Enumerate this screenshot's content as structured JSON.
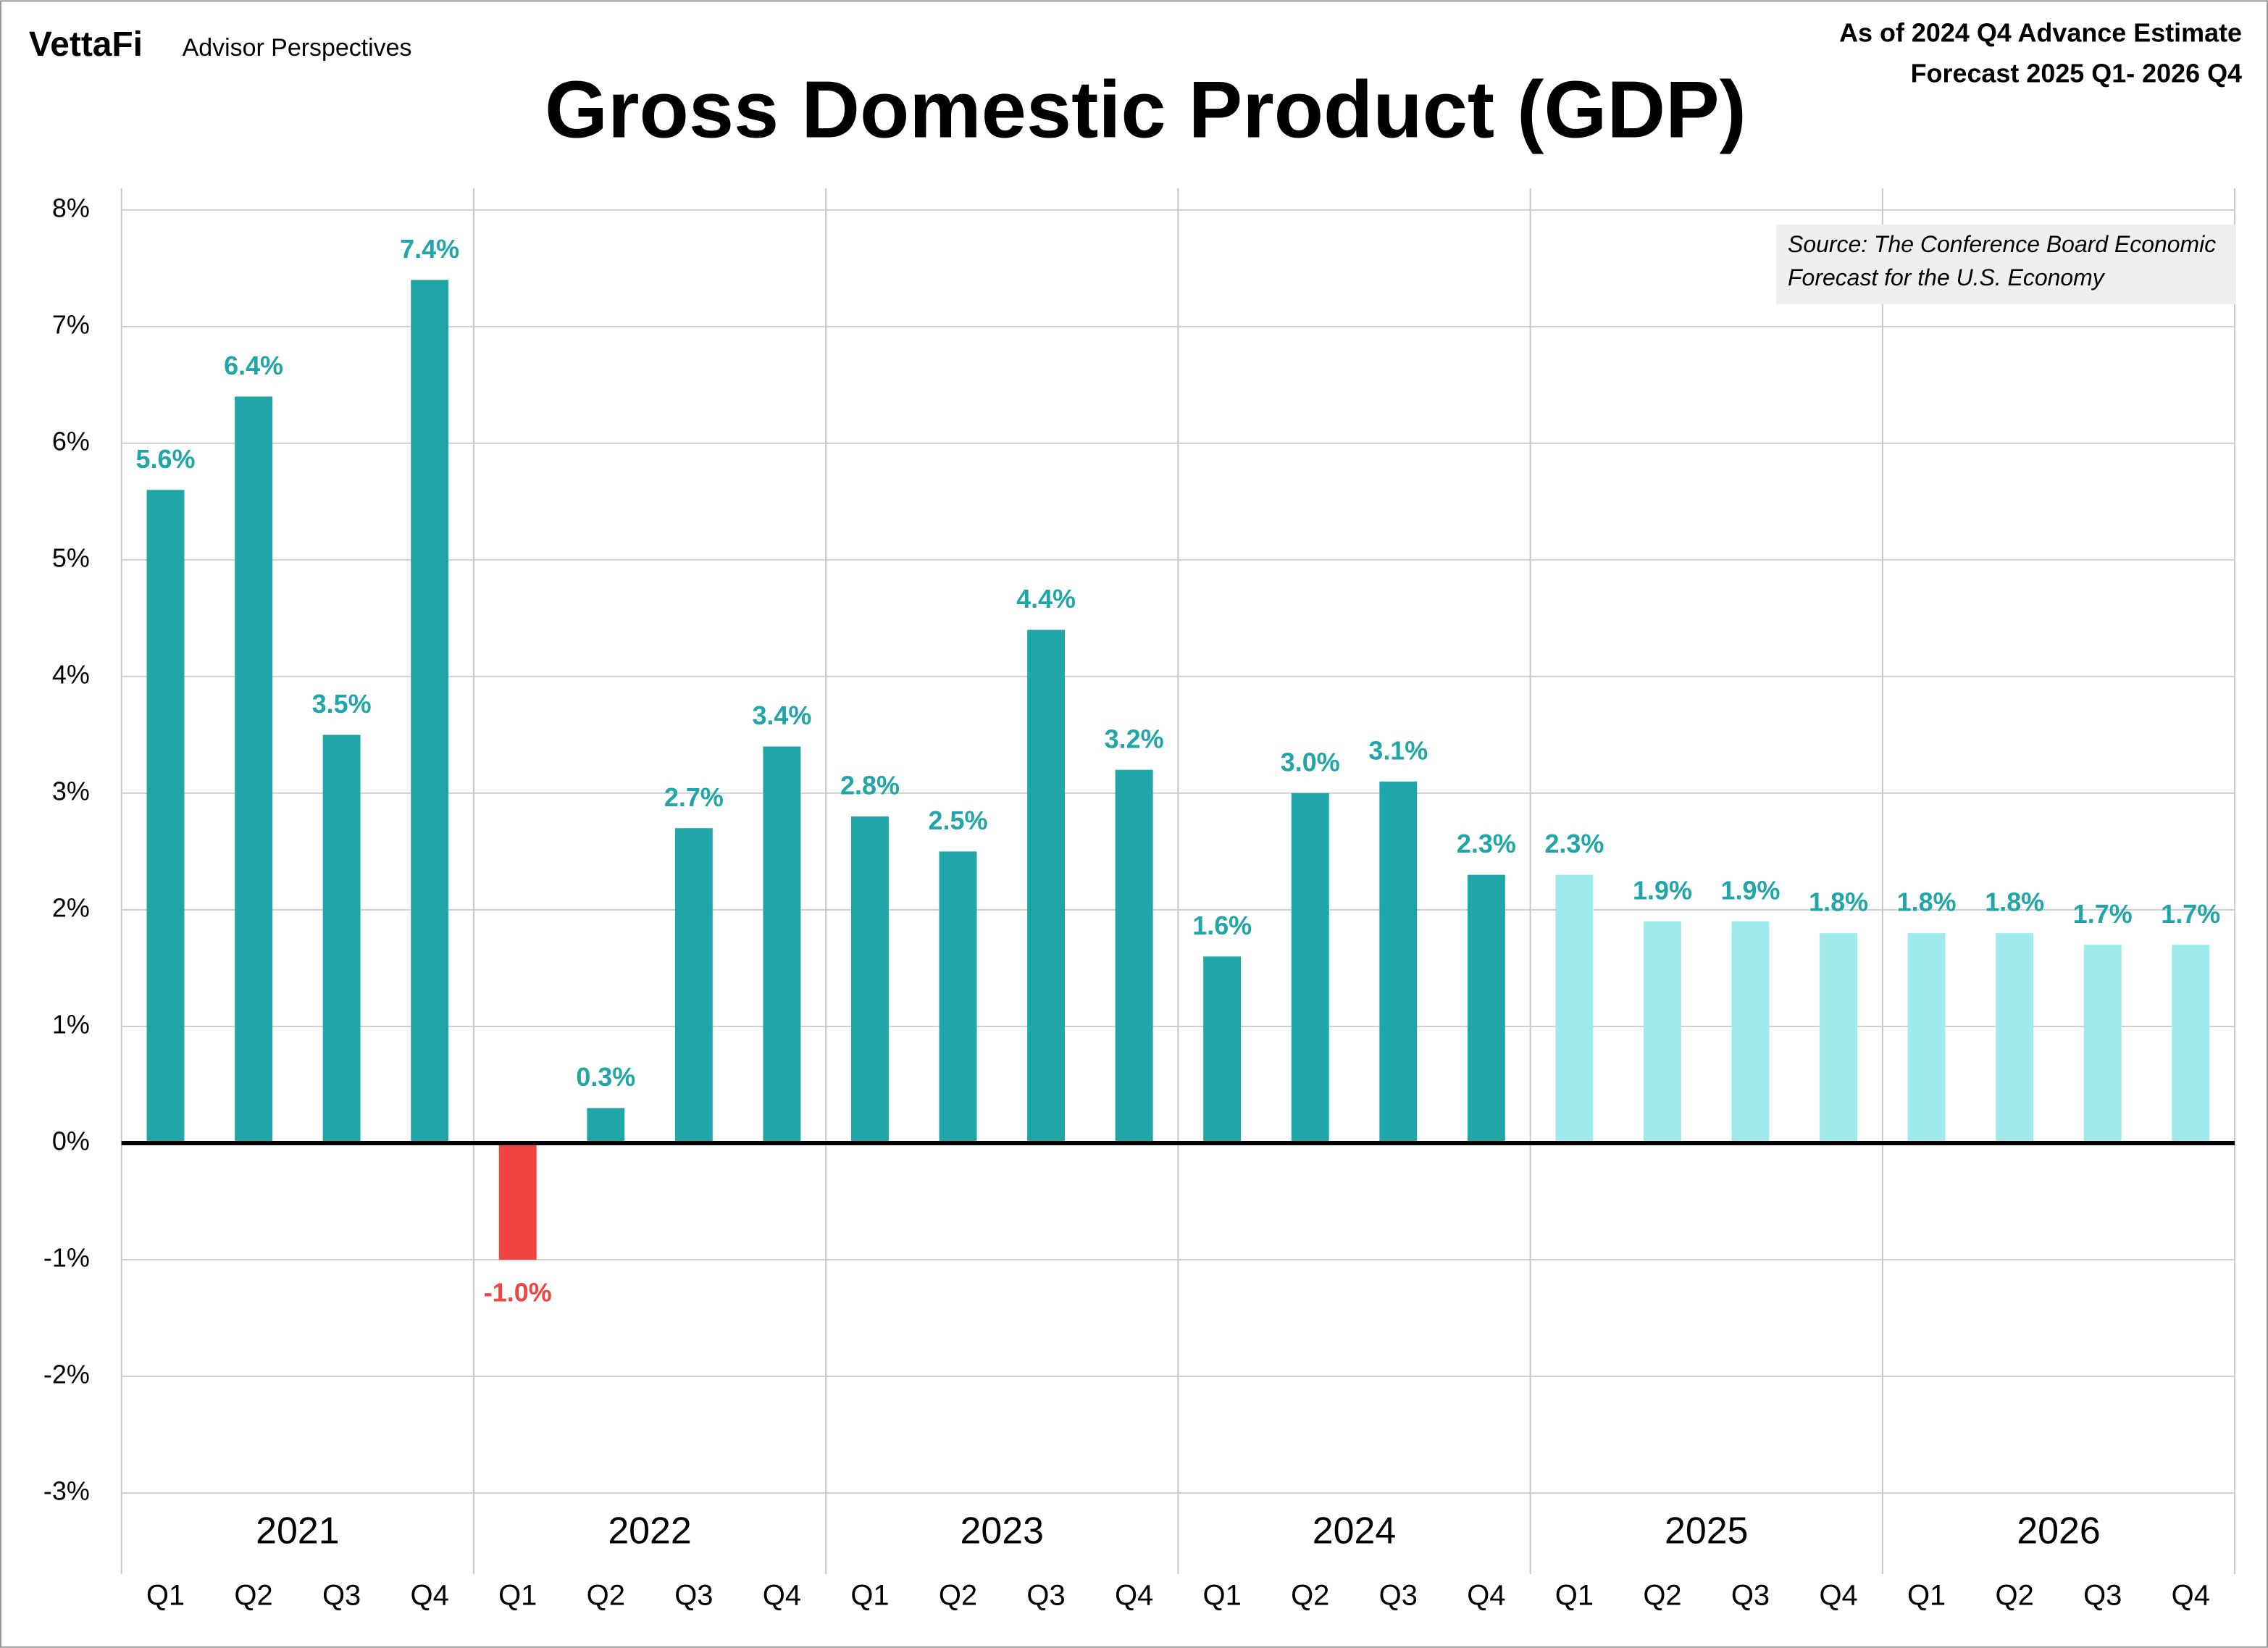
{
  "header": {
    "brand": "VettaFi",
    "brand_sub": "Advisor Perspectives",
    "note_lines": [
      "As of 2024 Q4 Advance Estimate",
      "Forecast 2025 Q1- 2026 Q4"
    ]
  },
  "chart_data": {
    "type": "bar",
    "title": "Gross Domestic Product (GDP)",
    "source_lines": [
      "Source: The Conference Board Economic",
      "Forecast for the U.S. Economy"
    ],
    "categories": [
      "Q1",
      "Q2",
      "Q3",
      "Q4",
      "Q1",
      "Q2",
      "Q3",
      "Q4",
      "Q1",
      "Q2",
      "Q3",
      "Q4",
      "Q1",
      "Q2",
      "Q3",
      "Q4",
      "Q1",
      "Q2",
      "Q3",
      "Q4",
      "Q1",
      "Q2",
      "Q3",
      "Q4"
    ],
    "groups": [
      "2021",
      "2022",
      "2023",
      "2024",
      "2025",
      "2026"
    ],
    "values": [
      5.6,
      6.4,
      3.5,
      7.4,
      -1.0,
      0.3,
      2.7,
      3.4,
      2.8,
      2.5,
      4.4,
      3.2,
      1.6,
      3.0,
      3.1,
      2.3,
      2.3,
      1.9,
      1.9,
      1.8,
      1.8,
      1.8,
      1.7,
      1.7
    ],
    "value_labels": [
      "5.6%",
      "6.4%",
      "3.5%",
      "7.4%",
      "-1.0%",
      "0.3%",
      "2.7%",
      "3.4%",
      "2.8%",
      "2.5%",
      "4.4%",
      "3.2%",
      "1.6%",
      "3.0%",
      "3.1%",
      "2.3%",
      "2.3%",
      "1.9%",
      "1.9%",
      "1.8%",
      "1.8%",
      "1.8%",
      "1.7%",
      "1.7%"
    ],
    "colors": [
      "#20a6a8",
      "#20a6a8",
      "#20a6a8",
      "#20a6a8",
      "#f04440",
      "#20a6a8",
      "#20a6a8",
      "#20a6a8",
      "#20a6a8",
      "#20a6a8",
      "#20a6a8",
      "#20a6a8",
      "#20a6a8",
      "#20a6a8",
      "#20a6a8",
      "#20a6a8",
      "#a0eaec",
      "#a0eaec",
      "#a0eaec",
      "#a0eaec",
      "#a0eaec",
      "#a0eaec",
      "#a0eaec",
      "#a0eaec"
    ],
    "ylim": [
      -3,
      8
    ],
    "yticks": [
      {
        "value": -3,
        "label": "-3%"
      },
      {
        "value": -2,
        "label": "-2%"
      },
      {
        "value": -1,
        "label": "-1%"
      },
      {
        "value": 0,
        "label": "0%"
      },
      {
        "value": 1,
        "label": "1%"
      },
      {
        "value": 2,
        "label": "2%"
      },
      {
        "value": 3,
        "label": "3%"
      },
      {
        "value": 4,
        "label": "4%"
      },
      {
        "value": 5,
        "label": "5%"
      },
      {
        "value": 6,
        "label": "6%"
      },
      {
        "value": 7,
        "label": "7%"
      },
      {
        "value": 8,
        "label": "8%"
      }
    ],
    "grid": true
  }
}
